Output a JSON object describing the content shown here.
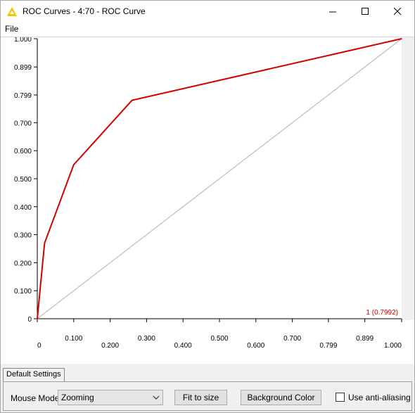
{
  "window": {
    "title": "ROC Curves - 4:70 - ROC Curve",
    "menu": {
      "file": "File"
    }
  },
  "tabs": {
    "default_settings": "Default Settings"
  },
  "settings": {
    "mouse_mode_label": "Mouse Mode",
    "mouse_mode_value": "Zooming",
    "fit_to_size": "Fit to size",
    "background_color": "Background Color",
    "anti_aliasing_label": "Use anti-aliasing",
    "anti_aliasing_checked": false
  },
  "colors": {
    "roc_curve": "#d40000",
    "diagonal": "#bdbdbd",
    "accent_icon": "#f5c400"
  },
  "chart_data": {
    "type": "line",
    "title": "",
    "xlabel": "",
    "ylabel": "",
    "xlim": [
      0,
      1.0
    ],
    "ylim": [
      0,
      1.0
    ],
    "x_ticks": [
      "0",
      "0.100",
      "0.200",
      "0.300",
      "0.400",
      "0.500",
      "0.600",
      "0.700",
      "0.799",
      "0.899",
      "1.000"
    ],
    "x_tick_values": [
      0,
      0.1,
      0.2,
      0.3,
      0.4,
      0.5,
      0.6,
      0.7,
      0.799,
      0.899,
      1.0
    ],
    "y_ticks": [
      "0",
      "0.100",
      "0.200",
      "0.300",
      "0.400",
      "0.500",
      "0.600",
      "0.700",
      "0.799",
      "0.899",
      "1.000"
    ],
    "y_tick_values": [
      0,
      0.1,
      0.2,
      0.3,
      0.4,
      0.5,
      0.6,
      0.7,
      0.799,
      0.899,
      1.0
    ],
    "series": [
      {
        "name": "1 (0.7992)",
        "color": "#d40000",
        "points": [
          [
            0,
            0
          ],
          [
            0.02,
            0.27
          ],
          [
            0.1,
            0.55
          ],
          [
            0.26,
            0.78
          ],
          [
            1.0,
            1.0
          ]
        ]
      }
    ],
    "diagonal": [
      [
        0,
        0
      ],
      [
        1.0,
        1.0
      ]
    ],
    "grid": false,
    "legend_position": "bottom-right"
  }
}
